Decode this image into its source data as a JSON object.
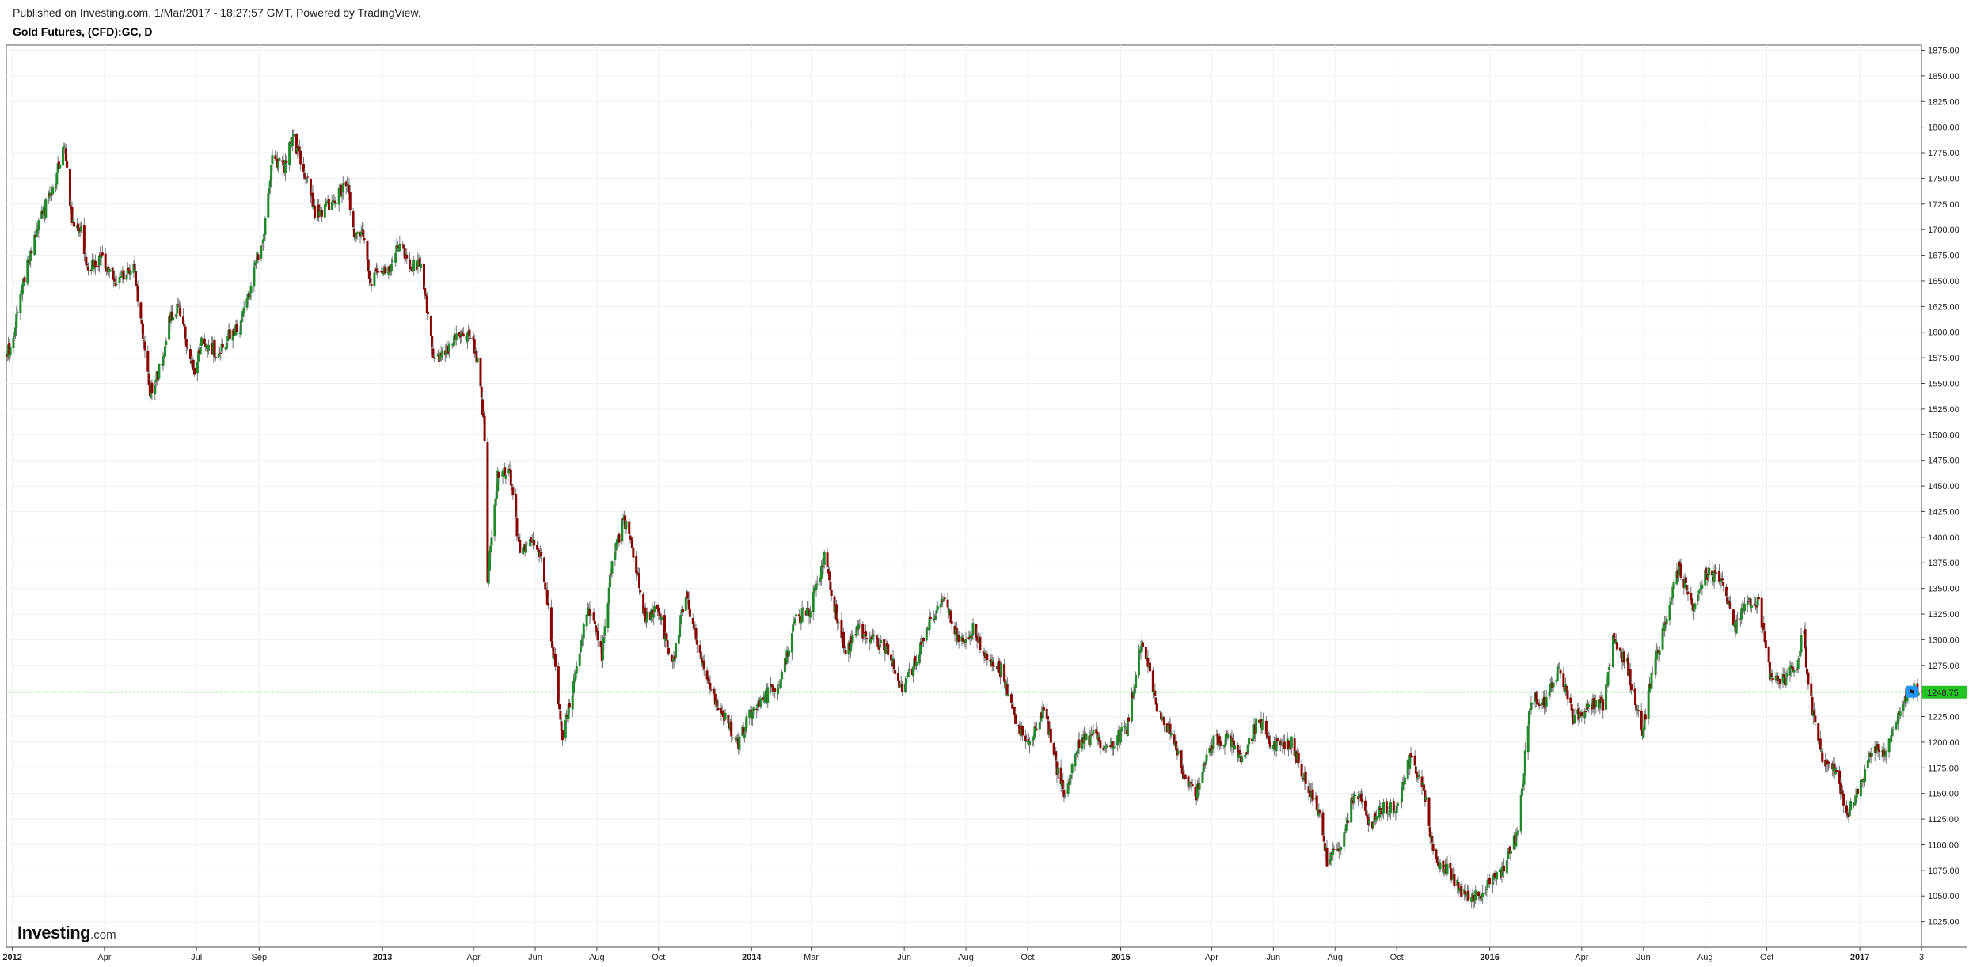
{
  "header": {
    "published_line": "Published on Investing.com, 1/Mar/2017 - 18:27:57 GMT, Powered by TradingView.",
    "symbol_title": "Gold Futures, (CFD):GC, D"
  },
  "logo": {
    "word": "Investing",
    "domain": ".com"
  },
  "colors": {
    "up": "#1e8b2a",
    "down": "#8b0000",
    "grid": "#f0f0f0",
    "axis": "#444444",
    "last_price_line": "#33cc33",
    "last_price_bg": "#22c322",
    "marker": "#2196f3"
  },
  "icons": {
    "price_marker": "flag-marker-icon"
  },
  "last_price": {
    "value": 1248.75,
    "label": "1248.75"
  },
  "chart_data": {
    "type": "candlestick",
    "title": "Gold Futures, (CFD):GC, D",
    "x_range": [
      "2011-12-26",
      "2017-03-03"
    ],
    "ylim": [
      1000,
      1880
    ],
    "y_axis_side": "right",
    "grid": true,
    "y_ticks": [
      "1025.00",
      "1050.00",
      "1075.00",
      "1100.00",
      "1125.00",
      "1150.00",
      "1175.00",
      "1200.00",
      "1225.00",
      "1250.00",
      "1275.00",
      "1300.00",
      "1325.00",
      "1350.00",
      "1375.00",
      "1400.00",
      "1425.00",
      "1450.00",
      "1475.00",
      "1500.00",
      "1525.00",
      "1550.00",
      "1575.00",
      "1600.00",
      "1625.00",
      "1650.00",
      "1675.00",
      "1700.00",
      "1725.00",
      "1750.00",
      "1775.00",
      "1800.00",
      "1825.00",
      "1850.00",
      "1875.00"
    ],
    "x_ticks": [
      {
        "label": "2012",
        "date": "2012-01-01",
        "bold": true
      },
      {
        "label": "Apr",
        "date": "2012-04-01"
      },
      {
        "label": "Jul",
        "date": "2012-07-01"
      },
      {
        "label": "Sep",
        "date": "2012-09-01"
      },
      {
        "label": "2013",
        "date": "2013-01-01",
        "bold": true
      },
      {
        "label": "Apr",
        "date": "2013-04-01"
      },
      {
        "label": "Jun",
        "date": "2013-06-01"
      },
      {
        "label": "Aug",
        "date": "2013-08-01"
      },
      {
        "label": "Oct",
        "date": "2013-10-01"
      },
      {
        "label": "2014",
        "date": "2014-01-01",
        "bold": true
      },
      {
        "label": "Mar",
        "date": "2014-03-01"
      },
      {
        "label": "Jun",
        "date": "2014-06-01"
      },
      {
        "label": "Aug",
        "date": "2014-08-01"
      },
      {
        "label": "Oct",
        "date": "2014-10-01"
      },
      {
        "label": "2015",
        "date": "2015-01-01",
        "bold": true
      },
      {
        "label": "Apr",
        "date": "2015-04-01"
      },
      {
        "label": "Jun",
        "date": "2015-06-01"
      },
      {
        "label": "Aug",
        "date": "2015-08-01"
      },
      {
        "label": "Oct",
        "date": "2015-10-01"
      },
      {
        "label": "2016",
        "date": "2016-01-01",
        "bold": true
      },
      {
        "label": "Apr",
        "date": "2016-04-01"
      },
      {
        "label": "Jun",
        "date": "2016-06-01"
      },
      {
        "label": "Aug",
        "date": "2016-08-01"
      },
      {
        "label": "Oct",
        "date": "2016-10-01"
      },
      {
        "label": "2017",
        "date": "2017-01-01",
        "bold": true
      },
      {
        "label": "3",
        "date": "2017-03-03"
      }
    ],
    "close_path": [
      [
        "2011-12-27",
        1580
      ],
      [
        "2012-01-03",
        1600
      ],
      [
        "2012-01-12",
        1650
      ],
      [
        "2012-01-25",
        1700
      ],
      [
        "2012-02-06",
        1730
      ],
      [
        "2012-02-22",
        1780
      ],
      [
        "2012-02-29",
        1710
      ],
      [
        "2012-03-09",
        1700
      ],
      [
        "2012-03-15",
        1660
      ],
      [
        "2012-03-30",
        1670
      ],
      [
        "2012-04-12",
        1650
      ],
      [
        "2012-04-30",
        1665
      ],
      [
        "2012-05-09",
        1600
      ],
      [
        "2012-05-16",
        1540
      ],
      [
        "2012-05-28",
        1570
      ],
      [
        "2012-06-05",
        1615
      ],
      [
        "2012-06-14",
        1625
      ],
      [
        "2012-06-28",
        1560
      ],
      [
        "2012-07-06",
        1590
      ],
      [
        "2012-07-24",
        1580
      ],
      [
        "2012-08-03",
        1600
      ],
      [
        "2012-08-14",
        1605
      ],
      [
        "2012-08-22",
        1640
      ],
      [
        "2012-09-06",
        1700
      ],
      [
        "2012-09-14",
        1770
      ],
      [
        "2012-09-26",
        1760
      ],
      [
        "2012-10-04",
        1790
      ],
      [
        "2012-10-18",
        1750
      ],
      [
        "2012-10-26",
        1715
      ],
      [
        "2012-11-06",
        1720
      ],
      [
        "2012-11-14",
        1730
      ],
      [
        "2012-11-27",
        1745
      ],
      [
        "2012-12-04",
        1695
      ],
      [
        "2012-12-13",
        1695
      ],
      [
        "2012-12-20",
        1650
      ],
      [
        "2012-12-28",
        1665
      ],
      [
        "2013-01-09",
        1660
      ],
      [
        "2013-01-18",
        1690
      ],
      [
        "2013-01-29",
        1665
      ],
      [
        "2013-02-08",
        1670
      ],
      [
        "2013-02-20",
        1580
      ],
      [
        "2013-03-04",
        1575
      ],
      [
        "2013-03-15",
        1595
      ],
      [
        "2013-03-28",
        1595
      ],
      [
        "2013-04-05",
        1575
      ],
      [
        "2013-04-12",
        1500
      ],
      [
        "2013-04-15",
        1360
      ],
      [
        "2013-04-25",
        1460
      ],
      [
        "2013-05-07",
        1460
      ],
      [
        "2013-05-17",
        1385
      ],
      [
        "2013-05-29",
        1395
      ],
      [
        "2013-06-07",
        1385
      ],
      [
        "2013-06-20",
        1280
      ],
      [
        "2013-06-28",
        1200
      ],
      [
        "2013-07-10",
        1260
      ],
      [
        "2013-07-23",
        1335
      ],
      [
        "2013-08-06",
        1285
      ],
      [
        "2013-08-15",
        1365
      ],
      [
        "2013-08-27",
        1420
      ],
      [
        "2013-09-06",
        1385
      ],
      [
        "2013-09-18",
        1320
      ],
      [
        "2013-09-30",
        1330
      ],
      [
        "2013-10-15",
        1275
      ],
      [
        "2013-10-28",
        1345
      ],
      [
        "2013-11-08",
        1300
      ],
      [
        "2013-11-20",
        1250
      ],
      [
        "2013-12-05",
        1225
      ],
      [
        "2013-12-19",
        1200
      ],
      [
        "2014-01-03",
        1235
      ],
      [
        "2014-01-15",
        1245
      ],
      [
        "2014-01-30",
        1260
      ],
      [
        "2014-02-14",
        1320
      ],
      [
        "2014-02-28",
        1330
      ],
      [
        "2014-03-14",
        1380
      ],
      [
        "2014-03-24",
        1330
      ],
      [
        "2014-04-04",
        1290
      ],
      [
        "2014-04-17",
        1310
      ],
      [
        "2014-05-01",
        1300
      ],
      [
        "2014-05-16",
        1290
      ],
      [
        "2014-05-30",
        1250
      ],
      [
        "2014-06-13",
        1280
      ],
      [
        "2014-06-27",
        1320
      ],
      [
        "2014-07-10",
        1340
      ],
      [
        "2014-07-25",
        1300
      ],
      [
        "2014-08-08",
        1310
      ],
      [
        "2014-08-22",
        1280
      ],
      [
        "2014-09-05",
        1270
      ],
      [
        "2014-09-19",
        1220
      ],
      [
        "2014-10-03",
        1195
      ],
      [
        "2014-10-17",
        1235
      ],
      [
        "2014-10-31",
        1170
      ],
      [
        "2014-11-07",
        1145
      ],
      [
        "2014-11-21",
        1200
      ],
      [
        "2014-12-05",
        1205
      ],
      [
        "2014-12-19",
        1195
      ],
      [
        "2015-01-07",
        1215
      ],
      [
        "2015-01-22",
        1300
      ],
      [
        "2015-02-06",
        1235
      ],
      [
        "2015-02-20",
        1205
      ],
      [
        "2015-03-06",
        1165
      ],
      [
        "2015-03-17",
        1150
      ],
      [
        "2015-04-01",
        1200
      ],
      [
        "2015-04-17",
        1205
      ],
      [
        "2015-05-01",
        1180
      ],
      [
        "2015-05-18",
        1225
      ],
      [
        "2015-06-01",
        1195
      ],
      [
        "2015-06-19",
        1200
      ],
      [
        "2015-07-02",
        1165
      ],
      [
        "2015-07-17",
        1130
      ],
      [
        "2015-07-24",
        1085
      ],
      [
        "2015-08-07",
        1095
      ],
      [
        "2015-08-21",
        1155
      ],
      [
        "2015-09-04",
        1120
      ],
      [
        "2015-09-18",
        1135
      ],
      [
        "2015-10-02",
        1135
      ],
      [
        "2015-10-14",
        1185
      ],
      [
        "2015-10-28",
        1155
      ],
      [
        "2015-11-06",
        1090
      ],
      [
        "2015-11-20",
        1075
      ],
      [
        "2015-12-03",
        1055
      ],
      [
        "2015-12-17",
        1050
      ],
      [
        "2015-12-31",
        1060
      ],
      [
        "2016-01-14",
        1075
      ],
      [
        "2016-01-29",
        1115
      ],
      [
        "2016-02-11",
        1245
      ],
      [
        "2016-02-25",
        1240
      ],
      [
        "2016-03-10",
        1275
      ],
      [
        "2016-03-24",
        1220
      ],
      [
        "2016-04-08",
        1240
      ],
      [
        "2016-04-22",
        1235
      ],
      [
        "2016-05-02",
        1300
      ],
      [
        "2016-05-16",
        1275
      ],
      [
        "2016-05-31",
        1210
      ],
      [
        "2016-06-10",
        1270
      ],
      [
        "2016-06-24",
        1320
      ],
      [
        "2016-07-06",
        1370
      ],
      [
        "2016-07-20",
        1330
      ],
      [
        "2016-08-02",
        1365
      ],
      [
        "2016-08-17",
        1355
      ],
      [
        "2016-08-31",
        1310
      ],
      [
        "2016-09-08",
        1335
      ],
      [
        "2016-09-23",
        1335
      ],
      [
        "2016-10-04",
        1265
      ],
      [
        "2016-10-17",
        1260
      ],
      [
        "2016-10-31",
        1275
      ],
      [
        "2016-11-07",
        1315
      ],
      [
        "2016-11-10",
        1260
      ],
      [
        "2016-11-24",
        1185
      ],
      [
        "2016-12-08",
        1170
      ],
      [
        "2016-12-20",
        1130
      ],
      [
        "2016-12-30",
        1150
      ],
      [
        "2017-01-13",
        1195
      ],
      [
        "2017-01-27",
        1190
      ],
      [
        "2017-02-10",
        1230
      ],
      [
        "2017-02-24",
        1255
      ],
      [
        "2017-03-01",
        1248
      ]
    ]
  }
}
